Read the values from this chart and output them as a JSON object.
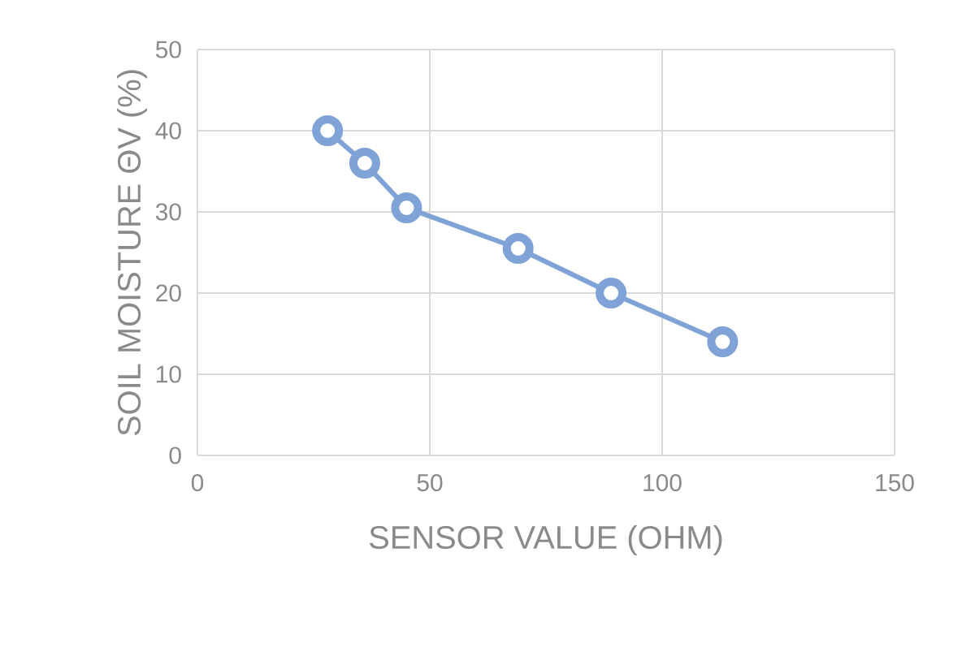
{
  "chart_data": {
    "type": "line",
    "xlabel": "SENSOR VALUE (OHM)",
    "ylabel": "SOIL MOISTURE ΘV (%)",
    "x": [
      28,
      36,
      45,
      69,
      89,
      113
    ],
    "series": [
      {
        "color": "#7fa3d6",
        "values": [
          40,
          36,
          30.5,
          25.5,
          20,
          14
        ]
      }
    ],
    "xlim": [
      0,
      150
    ],
    "ylim": [
      0,
      50
    ],
    "xticks": [
      0,
      50,
      100,
      150
    ],
    "yticks": [
      0,
      10,
      20,
      30,
      40,
      50
    ],
    "grid": true,
    "marker": "circle",
    "line_style": "solid"
  }
}
